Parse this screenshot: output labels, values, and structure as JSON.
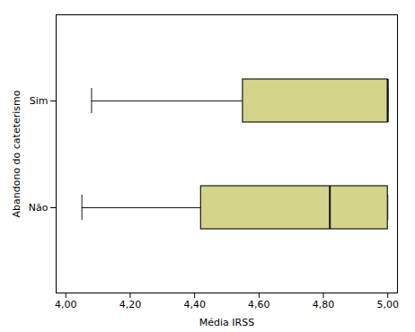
{
  "chart_data": {
    "type": "box",
    "orientation": "horizontal",
    "xlabel": "Média IRSS",
    "ylabel": "Abandono do cateterismo",
    "categories": [
      "Sim",
      "Não"
    ],
    "whisker_low": [
      4.08,
      4.05
    ],
    "q1": [
      4.55,
      4.42
    ],
    "median": [
      5.0,
      4.82
    ],
    "q3": [
      5.0,
      5.0
    ],
    "whisker_high": [
      5.0,
      5.0
    ],
    "color": "#d4d48a",
    "xlim": [
      3.97,
      5.03
    ],
    "xticks": [
      {
        "value": 4.0,
        "label": "4,00"
      },
      {
        "value": 4.2,
        "label": "4,20"
      },
      {
        "value": 4.4,
        "label": "4,40"
      },
      {
        "value": 4.6,
        "label": "4,60"
      },
      {
        "value": 4.8,
        "label": "4,80"
      },
      {
        "value": 5.0,
        "label": "5,00"
      }
    ],
    "grid": false
  }
}
